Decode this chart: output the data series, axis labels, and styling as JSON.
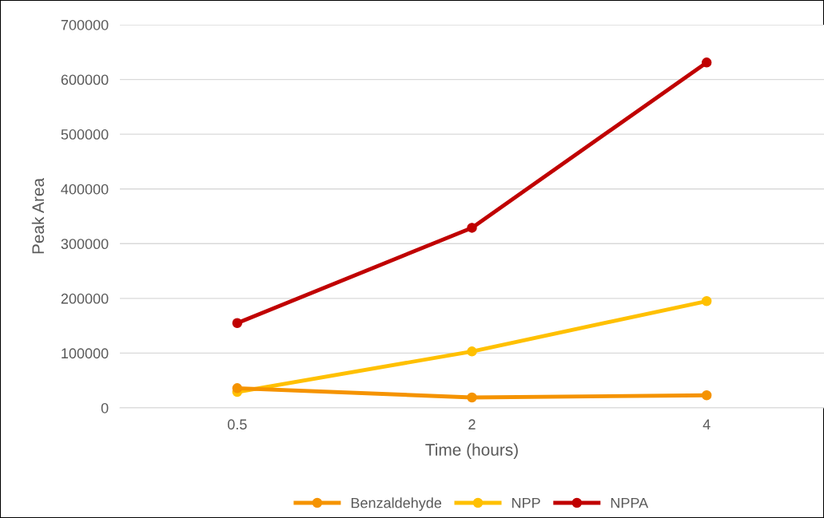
{
  "chart_data": {
    "type": "line",
    "xlabel": "Time (hours)",
    "ylabel": "Peak Area",
    "categories": [
      "0.5",
      "2",
      "4"
    ],
    "series": [
      {
        "name": "Benzaldehyde",
        "color": "#f59300",
        "values": [
          36000,
          19000,
          23000
        ]
      },
      {
        "name": "NPP",
        "color": "#ffc000",
        "values": [
          29000,
          103000,
          195000
        ]
      },
      {
        "name": "NPPA",
        "color": "#c00000",
        "values": [
          155000,
          329000,
          631000
        ]
      }
    ],
    "ylim": [
      0,
      700000
    ],
    "yticks": [
      0,
      100000,
      200000,
      300000,
      400000,
      500000,
      600000,
      700000
    ],
    "grid": "y",
    "legend": "bottom",
    "marker": "circle",
    "line_style": "solid"
  }
}
